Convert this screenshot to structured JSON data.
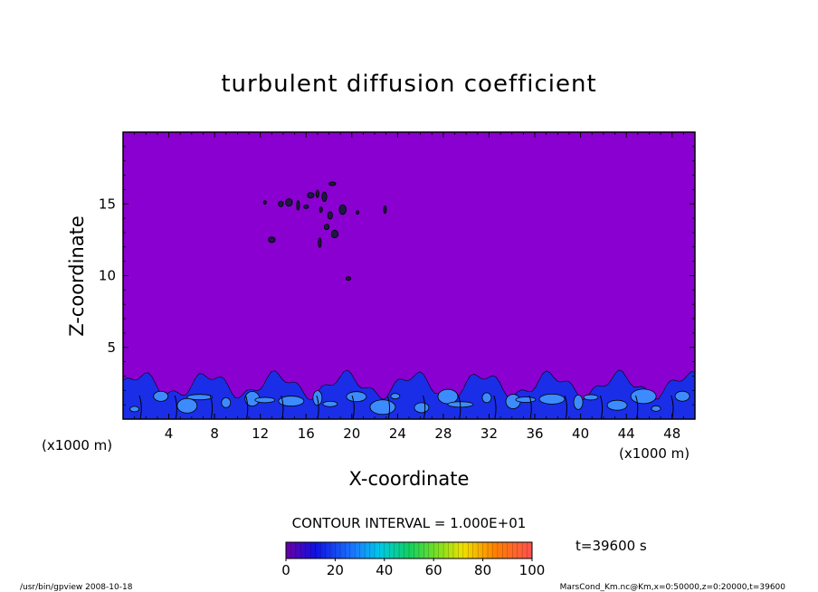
{
  "chart_data": {
    "type": "heatmap",
    "title": "turbulent diffusion coefficient",
    "xlabel": "X-coordinate",
    "ylabel": "Z-coordinate",
    "x_unit": "(×1000 m)",
    "x_unit_left": "(x1000 m)",
    "x_unit_right": "(x1000 m)",
    "xlim": [
      0,
      50
    ],
    "ylim": [
      0,
      20
    ],
    "x_ticks": [
      4,
      8,
      12,
      16,
      20,
      24,
      28,
      32,
      36,
      40,
      44,
      48
    ],
    "y_ticks": [
      5,
      10,
      15
    ],
    "contour_interval_label": "CONTOUR INTERVAL = 1.000E+01",
    "time_label": "t=39600 s",
    "colorbar": {
      "min": 0,
      "max": 100,
      "ticks": [
        0,
        20,
        40,
        60,
        80,
        100
      ]
    },
    "background_value": 0,
    "turbulent_layer_top_z": 3.3,
    "upper_blobs": [
      {
        "x": 12.4,
        "z": 15.1
      },
      {
        "x": 13.8,
        "z": 15.0
      },
      {
        "x": 14.5,
        "z": 15.1
      },
      {
        "x": 15.3,
        "z": 14.9
      },
      {
        "x": 16.0,
        "z": 14.8
      },
      {
        "x": 16.4,
        "z": 15.6
      },
      {
        "x": 17.0,
        "z": 15.7
      },
      {
        "x": 17.6,
        "z": 15.5
      },
      {
        "x": 18.3,
        "z": 16.4
      },
      {
        "x": 17.3,
        "z": 14.6
      },
      {
        "x": 18.1,
        "z": 14.2
      },
      {
        "x": 19.2,
        "z": 14.6
      },
      {
        "x": 20.5,
        "z": 14.4
      },
      {
        "x": 17.8,
        "z": 13.4
      },
      {
        "x": 18.5,
        "z": 12.9
      },
      {
        "x": 17.2,
        "z": 12.3
      },
      {
        "x": 19.7,
        "z": 9.8
      },
      {
        "x": 13.0,
        "z": 12.5
      },
      {
        "x": 22.9,
        "z": 14.6
      }
    ]
  },
  "footer": {
    "left": "/usr/bin/gpview   2008-10-18",
    "right": "MarsCond_Km.nc@Km,x=0:50000,z=0:20000,t=39600"
  },
  "colors": {
    "background_field": "#8a00d0",
    "turbulent_field_low": "#1a2ee8",
    "turbulent_field_high": "#3d8cff",
    "contour_line": "#000000"
  }
}
